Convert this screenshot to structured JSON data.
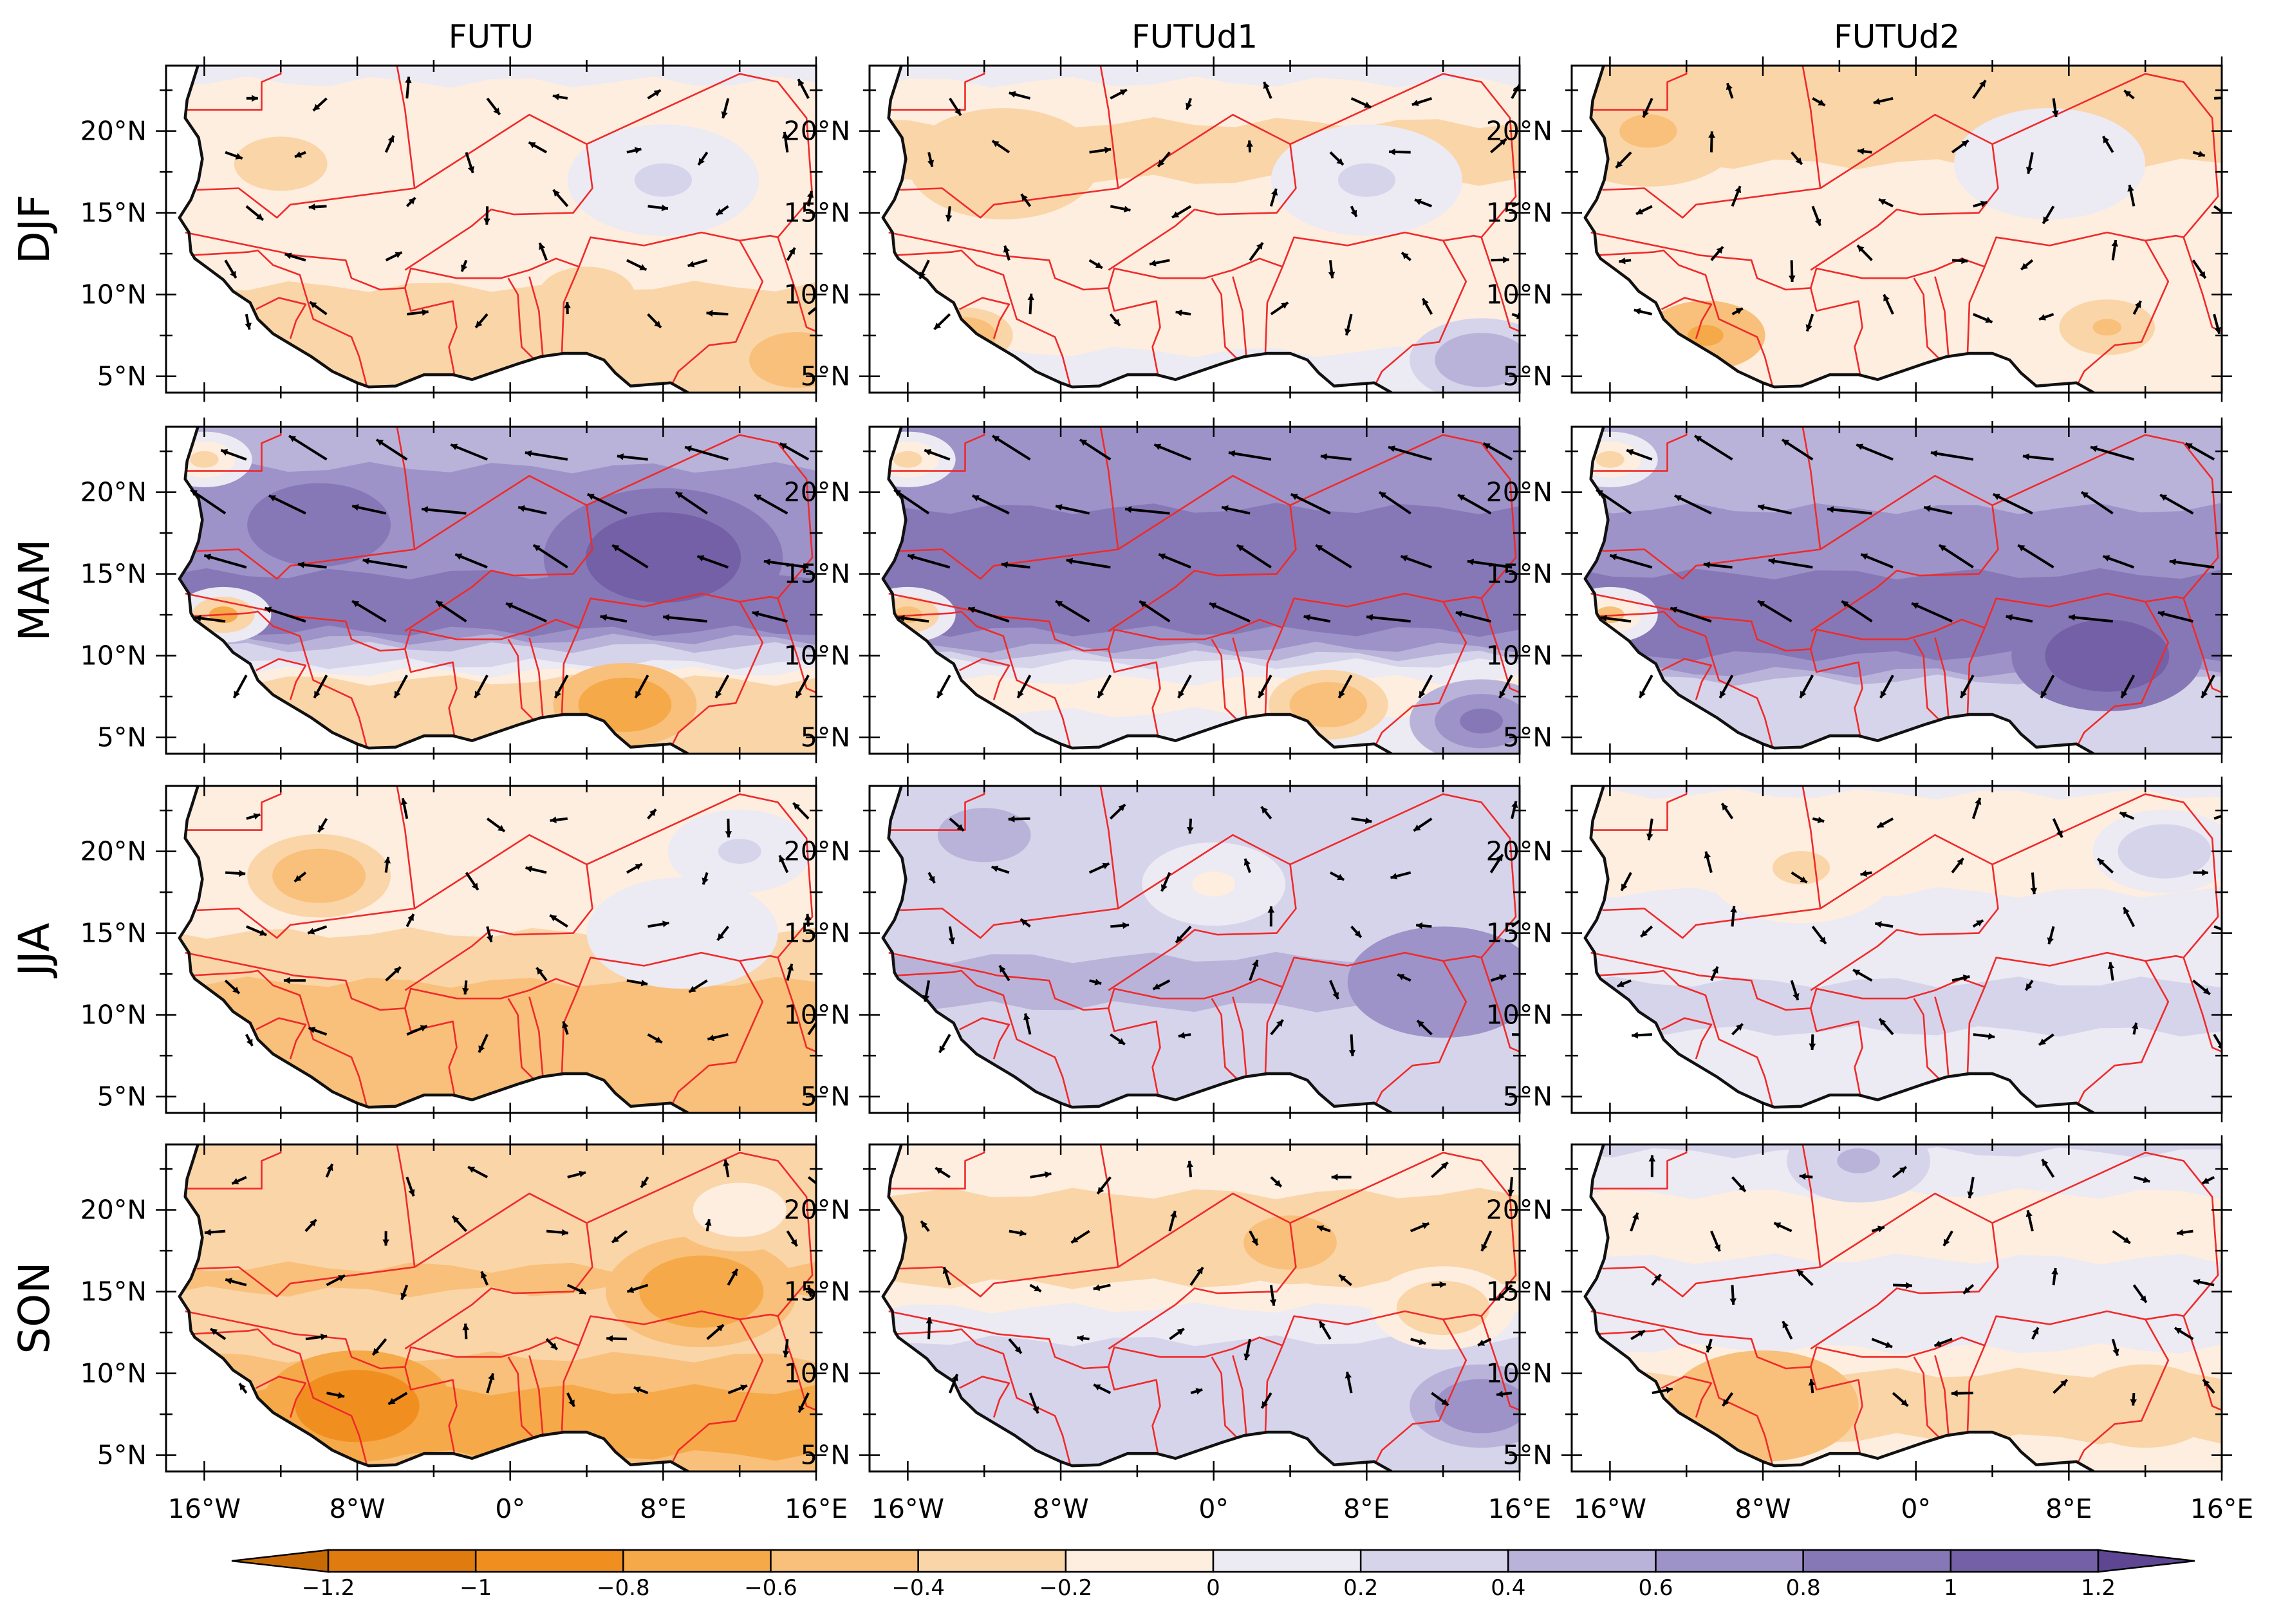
{
  "chart_data": {
    "type": "contour-map-grid",
    "columns": [
      "FUTU",
      "FUTUd1",
      "FUTUd2"
    ],
    "rows": [
      "DJF",
      "MAM",
      "JJA",
      "SON"
    ],
    "lon_ticks": [
      "16°W",
      "8°W",
      "0°",
      "8°E",
      "16°E"
    ],
    "lat_ticks": [
      "20°N",
      "15°N",
      "10°N",
      "5°N"
    ],
    "lon_range": [
      -18,
      16
    ],
    "lat_range": [
      4,
      24
    ],
    "colorbar": {
      "levels": [
        -1.2,
        -1,
        -0.8,
        -0.6,
        -0.4,
        -0.2,
        0,
        0.2,
        0.4,
        0.6,
        0.8,
        1,
        1.2
      ],
      "labels": [
        "-1.2",
        "-1",
        "-0.8",
        "-0.6",
        "-0.4",
        "-0.2",
        "0",
        "0.2",
        "0.4",
        "0.6",
        "0.8",
        "1",
        "1.2"
      ],
      "colors": [
        "#c76a06",
        "#e07b10",
        "#f08f20",
        "#f6a948",
        "#f8c07a",
        "#fad5a8",
        "#fdeee0",
        "#eceaf3",
        "#d6d4ea",
        "#b9b3da",
        "#9d93c8",
        "#8678b6",
        "#7460a6",
        "#5e4692"
      ]
    },
    "panels": [
      {
        "column": "FUTU",
        "row": "DJF",
        "bands": [
          {
            "lat": 23.5,
            "v": 0.05
          },
          {
            "lat": 20,
            "v": -0.2
          },
          {
            "lat": 16,
            "v": -0.1
          },
          {
            "lat": 12,
            "v": -0.15
          },
          {
            "lat": 9,
            "v": -0.25
          },
          {
            "lat": 6,
            "v": -0.35
          }
        ],
        "blobs": [
          {
            "lon": -12,
            "lat": 18,
            "r": 3,
            "v": -0.25
          },
          {
            "lon": 8,
            "lat": 17,
            "r": 4,
            "v": 0.3
          },
          {
            "lon": 4,
            "lat": 10,
            "r": 2,
            "v": -0.4
          },
          {
            "lon": 15,
            "lat": 6,
            "r": 2,
            "v": -0.5
          }
        ]
      },
      {
        "column": "FUTUd1",
        "row": "DJF",
        "bands": [
          {
            "lat": 23.5,
            "v": 0.05
          },
          {
            "lat": 19,
            "v": -0.3
          },
          {
            "lat": 16,
            "v": -0.15
          },
          {
            "lat": 12,
            "v": -0.1
          },
          {
            "lat": 9,
            "v": -0.2
          },
          {
            "lat": 6,
            "v": 0.05
          }
        ],
        "blobs": [
          {
            "lon": -11,
            "lat": 18,
            "r": 4,
            "v": -0.35
          },
          {
            "lon": 8,
            "lat": 17,
            "r": 4,
            "v": 0.3
          },
          {
            "lon": 14,
            "lat": 6,
            "r": 3,
            "v": 0.7
          },
          {
            "lon": -13,
            "lat": 7.5,
            "r": 2,
            "v": -0.6
          }
        ]
      },
      {
        "column": "FUTUd2",
        "row": "DJF",
        "bands": [
          {
            "lat": 23.5,
            "v": -0.3
          },
          {
            "lat": 19,
            "v": -0.25
          },
          {
            "lat": 16,
            "v": -0.1
          },
          {
            "lat": 12,
            "v": -0.1
          },
          {
            "lat": 9,
            "v": -0.2
          },
          {
            "lat": 6,
            "v": -0.05
          }
        ],
        "blobs": [
          {
            "lon": -14,
            "lat": 20,
            "r": 4,
            "v": -0.45
          },
          {
            "lon": -11,
            "lat": 7.5,
            "r": 2.5,
            "v": -0.8
          },
          {
            "lon": 10,
            "lat": 8,
            "r": 2,
            "v": -0.5
          },
          {
            "lon": 7,
            "lat": 18,
            "r": 4,
            "v": 0.25
          }
        ]
      },
      {
        "column": "FUTU",
        "row": "MAM",
        "bands": [
          {
            "lat": 23.5,
            "v": 0.5
          },
          {
            "lat": 19,
            "v": 0.7
          },
          {
            "lat": 15,
            "v": 0.8
          },
          {
            "lat": 12,
            "v": 0.9
          },
          {
            "lat": 10,
            "v": 0.3
          },
          {
            "lat": 8,
            "v": -0.4
          },
          {
            "lat": 5.5,
            "v": -0.3
          }
        ],
        "blobs": [
          {
            "lon": -15,
            "lat": 12.5,
            "r": 2,
            "v": -1.0
          },
          {
            "lon": -16,
            "lat": 22,
            "r": 2,
            "v": -0.4
          },
          {
            "lon": 6,
            "lat": 7,
            "r": 3,
            "v": -0.8
          },
          {
            "lon": 8,
            "lat": 16,
            "r": 5,
            "v": 1.2
          },
          {
            "lon": -10,
            "lat": 18,
            "r": 3,
            "v": 0.9
          }
        ]
      },
      {
        "column": "FUTUd1",
        "row": "MAM",
        "bands": [
          {
            "lat": 23.5,
            "v": 0.6
          },
          {
            "lat": 19,
            "v": 0.8
          },
          {
            "lat": 15,
            "v": 0.9
          },
          {
            "lat": 12,
            "v": 1.0
          },
          {
            "lat": 10,
            "v": 0.4
          },
          {
            "lat": 8,
            "v": -0.2
          },
          {
            "lat": 5.5,
            "v": 0.1
          }
        ],
        "blobs": [
          {
            "lon": -16,
            "lat": 12.5,
            "r": 2,
            "v": -0.9
          },
          {
            "lon": -16,
            "lat": 22,
            "r": 2,
            "v": -0.5
          },
          {
            "lon": 6,
            "lat": 7,
            "r": 2.5,
            "v": -0.6
          },
          {
            "lon": 14,
            "lat": 6,
            "r": 3,
            "v": 1.1
          }
        ]
      },
      {
        "column": "FUTUd2",
        "row": "MAM",
        "bands": [
          {
            "lat": 23.5,
            "v": 0.5
          },
          {
            "lat": 19,
            "v": 0.6
          },
          {
            "lat": 15,
            "v": 0.8
          },
          {
            "lat": 12,
            "v": 0.9
          },
          {
            "lat": 10,
            "v": 0.8
          },
          {
            "lat": 8,
            "v": 0.3
          },
          {
            "lat": 5.5,
            "v": 0.2
          }
        ],
        "blobs": [
          {
            "lon": -16,
            "lat": 12.5,
            "r": 2,
            "v": -0.7
          },
          {
            "lon": -16,
            "lat": 22,
            "r": 2,
            "v": -0.5
          },
          {
            "lon": 10,
            "lat": 10,
            "r": 4,
            "v": 1.2
          }
        ]
      },
      {
        "column": "FUTU",
        "row": "JJA",
        "bands": [
          {
            "lat": 23.5,
            "v": -0.1
          },
          {
            "lat": 19,
            "v": -0.2
          },
          {
            "lat": 15,
            "v": -0.2
          },
          {
            "lat": 12,
            "v": -0.4
          },
          {
            "lat": 9,
            "v": -0.5
          },
          {
            "lat": 6,
            "v": -0.6
          }
        ],
        "blobs": [
          {
            "lon": -10,
            "lat": 18.5,
            "r": 3,
            "v": -0.55
          },
          {
            "lon": 9,
            "lat": 15,
            "r": 4,
            "v": 0.25
          },
          {
            "lon": 12,
            "lat": 20,
            "r": 3,
            "v": 0.3
          }
        ]
      },
      {
        "column": "FUTUd1",
        "row": "JJA",
        "bands": [
          {
            "lat": 23.5,
            "v": 0.3
          },
          {
            "lat": 19,
            "v": 0.25
          },
          {
            "lat": 15,
            "v": 0.3
          },
          {
            "lat": 12,
            "v": 0.5
          },
          {
            "lat": 9,
            "v": 0.3
          },
          {
            "lat": 6,
            "v": 0.2
          }
        ],
        "blobs": [
          {
            "lon": 12,
            "lat": 12,
            "r": 4,
            "v": 0.8
          },
          {
            "lon": -12,
            "lat": 21,
            "r": 3,
            "v": 0.5
          },
          {
            "lon": 0,
            "lat": 18,
            "r": 3,
            "v": -0.1
          }
        ]
      },
      {
        "column": "FUTUd2",
        "row": "JJA",
        "bands": [
          {
            "lat": 23.5,
            "v": 0.0
          },
          {
            "lat": 19,
            "v": -0.1
          },
          {
            "lat": 15,
            "v": 0.15
          },
          {
            "lat": 12,
            "v": 0.2
          },
          {
            "lat": 9,
            "v": 0.2
          },
          {
            "lat": 6,
            "v": 0.15
          }
        ],
        "blobs": [
          {
            "lon": -6,
            "lat": 19,
            "r": 4,
            "v": -0.25
          },
          {
            "lon": 13,
            "lat": 20,
            "r": 3,
            "v": 0.4
          }
        ]
      },
      {
        "column": "FUTU",
        "row": "SON",
        "bands": [
          {
            "lat": 23.5,
            "v": -0.3
          },
          {
            "lat": 19,
            "v": -0.25
          },
          {
            "lat": 15.5,
            "v": -0.45
          },
          {
            "lat": 13,
            "v": -0.2
          },
          {
            "lat": 10,
            "v": -0.5
          },
          {
            "lat": 7,
            "v": -0.75
          },
          {
            "lat": 5,
            "v": -0.6
          }
        ],
        "blobs": [
          {
            "lon": 10,
            "lat": 15,
            "r": 4,
            "v": -0.8
          },
          {
            "lon": -8,
            "lat": 8,
            "r": 4,
            "v": -0.9
          },
          {
            "lon": 12,
            "lat": 20,
            "r": 3,
            "v": -0.15
          }
        ]
      },
      {
        "column": "FUTUd1",
        "row": "SON",
        "bands": [
          {
            "lat": 23.5,
            "v": -0.1
          },
          {
            "lat": 19,
            "v": -0.3
          },
          {
            "lat": 15.5,
            "v": -0.2
          },
          {
            "lat": 12,
            "v": 0.2
          },
          {
            "lat": 9,
            "v": 0.35
          },
          {
            "lat": 6,
            "v": 0.3
          }
        ],
        "blobs": [
          {
            "lon": 4,
            "lat": 18,
            "r": 3,
            "v": -0.5
          },
          {
            "lon": 14,
            "lat": 8,
            "r": 3,
            "v": 0.8
          },
          {
            "lon": 12,
            "lat": 14,
            "r": 3,
            "v": -0.4
          }
        ]
      },
      {
        "column": "FUTUd2",
        "row": "SON",
        "bands": [
          {
            "lat": 23.5,
            "v": 0.2
          },
          {
            "lat": 19,
            "v": -0.15
          },
          {
            "lat": 15.5,
            "v": 0.1
          },
          {
            "lat": 12,
            "v": 0.1
          },
          {
            "lat": 9,
            "v": -0.35
          },
          {
            "lat": 6,
            "v": -0.2
          }
        ],
        "blobs": [
          {
            "lon": -8,
            "lat": 8,
            "r": 4,
            "v": -0.55
          },
          {
            "lon": -3,
            "lat": 23,
            "r": 3,
            "v": 0.5
          },
          {
            "lon": 12,
            "lat": 8,
            "r": 3,
            "v": -0.4
          }
        ]
      }
    ]
  }
}
